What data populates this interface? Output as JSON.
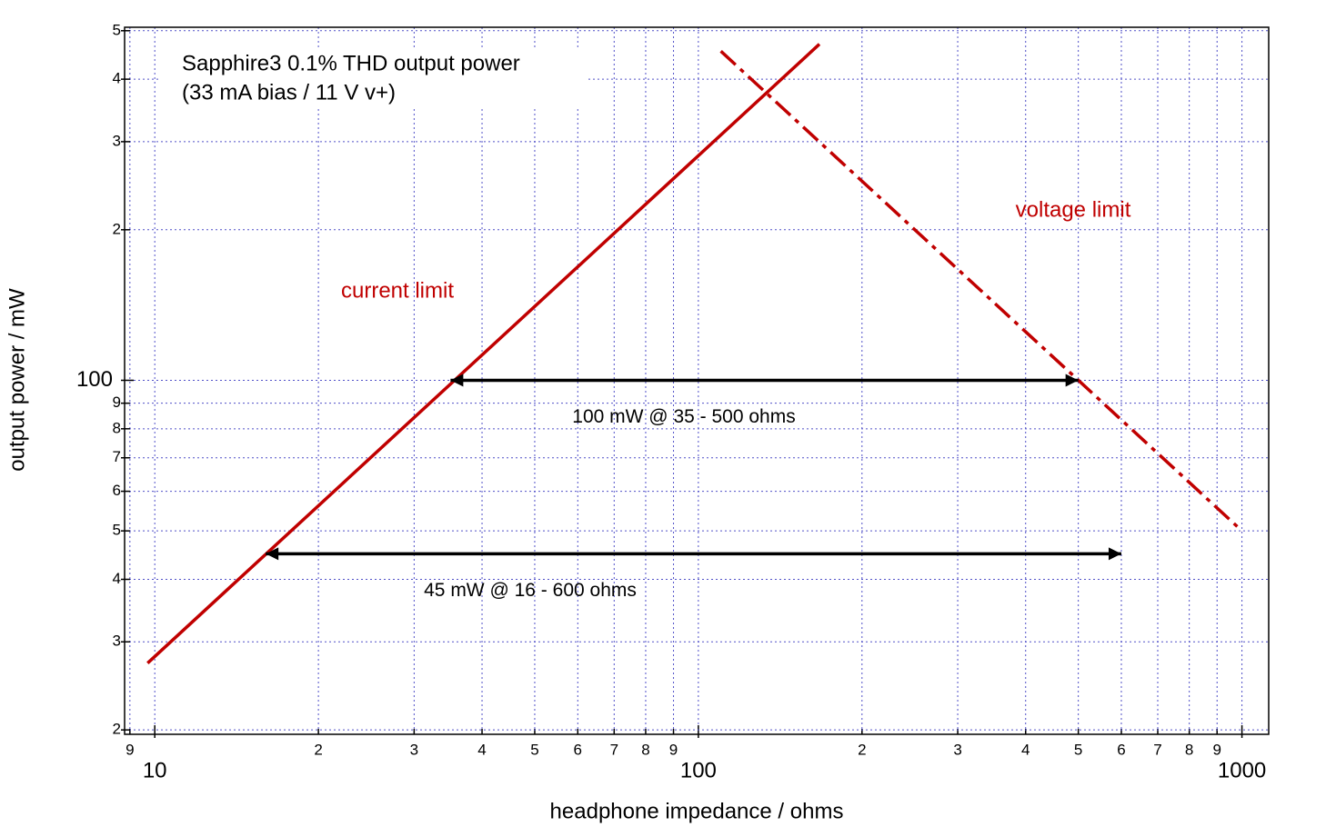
{
  "chart_data": {
    "type": "line",
    "title": "Sapphire3 0.1% THD output power",
    "subtitle": "(33 mA bias / 11 V v+)",
    "xlabel": "headphone impedance / ohms",
    "ylabel": "output power / mW",
    "log_x": true,
    "log_y": true,
    "grid": true,
    "xlim": [
      8.8,
      1120
    ],
    "ylim": [
      19.6,
      508
    ],
    "xticks": [
      9,
      10,
      {
        "value": 20,
        "label": "2"
      },
      {
        "value": 30,
        "label": "3"
      },
      {
        "value": 40,
        "label": "4"
      },
      {
        "value": 50,
        "label": "5"
      },
      {
        "value": 60,
        "label": "6"
      },
      {
        "value": 70,
        "label": "7"
      },
      {
        "value": 80,
        "label": "8"
      },
      {
        "value": 90,
        "label": "9"
      },
      100,
      {
        "value": 200,
        "label": "2"
      },
      {
        "value": 300,
        "label": "3"
      },
      {
        "value": 400,
        "label": "4"
      },
      {
        "value": 500,
        "label": "5"
      },
      {
        "value": 600,
        "label": "6"
      },
      {
        "value": 700,
        "label": "7"
      },
      {
        "value": 800,
        "label": "8"
      },
      {
        "value": 900,
        "label": "9"
      },
      1000
    ],
    "yticks": [
      {
        "value": 20,
        "label": "2"
      },
      {
        "value": 30,
        "label": "3"
      },
      {
        "value": 40,
        "label": "4"
      },
      {
        "value": 50,
        "label": "5"
      },
      {
        "value": 60,
        "label": "6"
      },
      {
        "value": 70,
        "label": "7"
      },
      {
        "value": 80,
        "label": "8"
      },
      {
        "value": 90,
        "label": "9"
      },
      100,
      {
        "value": 200,
        "label": "2"
      },
      {
        "value": 300,
        "label": "3"
      },
      {
        "value": 400,
        "label": "4"
      },
      {
        "value": 500,
        "label": "5"
      }
    ],
    "series": [
      {
        "name": "current limit",
        "color": "#c00000",
        "style": "solid",
        "x": [
          9.7,
          167
        ],
        "values": [
          27.2,
          470
        ]
      },
      {
        "name": "voltage limit",
        "color": "#c00000",
        "style": "dashdot",
        "x": [
          110,
          1000
        ],
        "values": [
          455,
          50
        ]
      }
    ],
    "annotations": [
      {
        "text": "100 mW @ 35 - 500 ohms",
        "y": 100,
        "x": [
          35,
          500
        ]
      },
      {
        "text": "45 mW @ 16 - 600 ohms",
        "y": 45,
        "x": [
          16,
          600
        ]
      }
    ]
  }
}
